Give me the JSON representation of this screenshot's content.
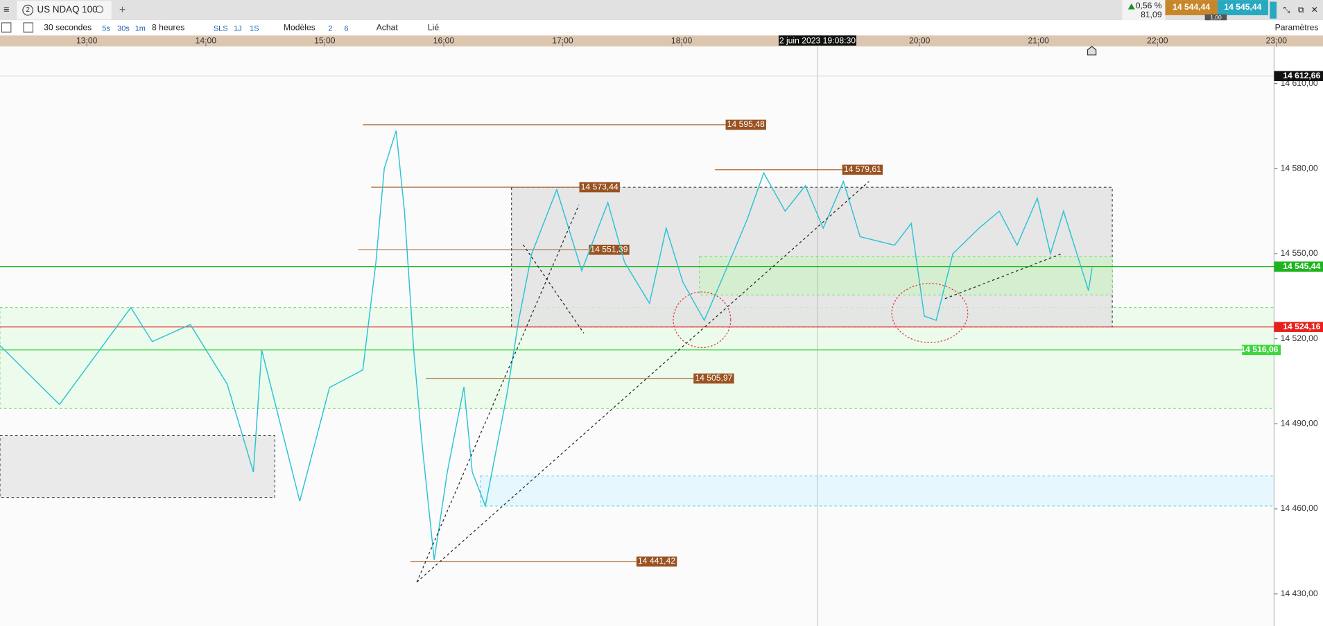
{
  "tab": {
    "number": "2",
    "title": "US NDAQ 100"
  },
  "quote": {
    "change": "0,56 %",
    "points": "81,09",
    "sell": "14 544,44",
    "buy": "14 545,44",
    "spread": "1,00"
  },
  "toolbar": {
    "interval": "30 secondes",
    "presets": [
      "5s",
      "30s",
      "1m"
    ],
    "range": "8 heures",
    "periods": [
      "SLS",
      "1J",
      "1S"
    ],
    "templates": "Modèles",
    "layouts": [
      "2",
      "6"
    ],
    "order": "Achat",
    "link": "Lié",
    "settings": "Paramètres"
  },
  "chart_data": {
    "type": "line",
    "color": "#2bc3d4",
    "crosshair": {
      "value": 19.1417,
      "label": "2 juin 2023 19:08:30"
    },
    "x": [
      12.27,
      12.77,
      13.37,
      13.55,
      13.87,
      14.18,
      14.4,
      14.47,
      14.79,
      15.04,
      15.32,
      15.43,
      15.5,
      15.6,
      15.67,
      15.75,
      15.82,
      15.92,
      16.03,
      16.17,
      16.24,
      16.35,
      16.53,
      16.63,
      16.74,
      16.95,
      17.16,
      17.38,
      17.52,
      17.73,
      17.87,
      18.01,
      18.19,
      18.37,
      18.55,
      18.69,
      18.87,
      19.04,
      19.19,
      19.36,
      19.5,
      19.79,
      19.93,
      20.04,
      20.14,
      20.28,
      20.5,
      20.67,
      20.82,
      20.99,
      21.1,
      21.21,
      21.42,
      21.45
    ],
    "values": [
      14517.6,
      14496.8,
      14531,
      14519,
      14525,
      14504,
      14473,
      14516,
      14462.7,
      14502.8,
      14509,
      14547,
      14580,
      14593.4,
      14565,
      14514.7,
      14482,
      14442,
      14473,
      14503,
      14473,
      14461,
      14500,
      14526.5,
      14550,
      14572.6,
      14544,
      14568,
      14547,
      14532.5,
      14559,
      14540,
      14526.5,
      14544,
      14562,
      14578.5,
      14565,
      14574,
      14559,
      14575.5,
      14556,
      14553,
      14560.7,
      14528,
      14526.5,
      14550,
      14559,
      14565,
      14553,
      14569.6,
      14550,
      14565,
      14537,
      14545
    ],
    "xlim": [
      12.27,
      22.98
    ],
    "ylim": [
      14418.7,
      14623.1
    ],
    "xticks": [
      {
        "value": 13,
        "label": "13:00"
      },
      {
        "value": 14,
        "label": "14:00"
      },
      {
        "value": 15,
        "label": "15:00"
      },
      {
        "value": 16,
        "label": "16:00"
      },
      {
        "value": 17,
        "label": "17:00"
      },
      {
        "value": 18,
        "label": "18:00"
      },
      {
        "value": 20,
        "label": "20:00"
      },
      {
        "value": 21,
        "label": "21:00"
      },
      {
        "value": 22,
        "label": "22:00"
      },
      {
        "value": 23,
        "label": "23:00"
      }
    ],
    "yticks": [
      {
        "value": 14430,
        "label": "14 430,00"
      },
      {
        "value": 14460,
        "label": "14 460,00"
      },
      {
        "value": 14490,
        "label": "14 490,00"
      },
      {
        "value": 14520,
        "label": "14 520,00"
      },
      {
        "value": 14550,
        "label": "14 550,00"
      },
      {
        "value": 14580,
        "label": "14 580,00"
      },
      {
        "value": 14610,
        "label": "14 610,00"
      }
    ],
    "zones": [
      {
        "from": 12.27,
        "to": 22.98,
        "low": 14495.4,
        "high": 14531,
        "color": "#ecfbec"
      },
      {
        "from": 16.31,
        "to": 22.98,
        "low": 14461,
        "high": 14471.6,
        "color": "#e6f8fd"
      },
      {
        "from": 12.27,
        "to": 14.58,
        "low": 14464,
        "high": 14485.8,
        "color": "#e6e6e6"
      },
      {
        "from": 16.57,
        "to": 21.62,
        "low": 14524.16,
        "high": 14573.44,
        "color": "#e2e2e2"
      },
      {
        "from": 18.15,
        "to": 21.62,
        "low": 14535.4,
        "high": 14549,
        "color": "#d6eed0"
      }
    ],
    "levels": [
      {
        "value": 14595.48,
        "label": "14 595,48",
        "from": 15.32,
        "to": 18.37
      },
      {
        "value": 14573.44,
        "label": "14 573,44",
        "from": 15.39,
        "to": 17.14
      },
      {
        "value": 14551.39,
        "label": "14 551,39",
        "from": 15.28,
        "to": 17.22
      },
      {
        "value": 14579.61,
        "label": "14 579,61",
        "from": 18.28,
        "to": 19.35
      },
      {
        "value": 14505.97,
        "label": "14 505,97",
        "from": 15.85,
        "to": 18.1
      },
      {
        "value": 14441.42,
        "label": "14 441,42",
        "from": 15.72,
        "to": 17.62
      }
    ],
    "markers": [
      {
        "value": 14612.66,
        "label": "14 612,66",
        "color": "#111111"
      },
      {
        "value": 14545.44,
        "label": "14 545,44",
        "color": "#1fb41f"
      },
      {
        "value": 14524.16,
        "label": "14 524,16",
        "color": "#e8201c"
      },
      {
        "value": 14516.06,
        "label": "14 516,06",
        "color": "#3dd63d"
      }
    ]
  }
}
